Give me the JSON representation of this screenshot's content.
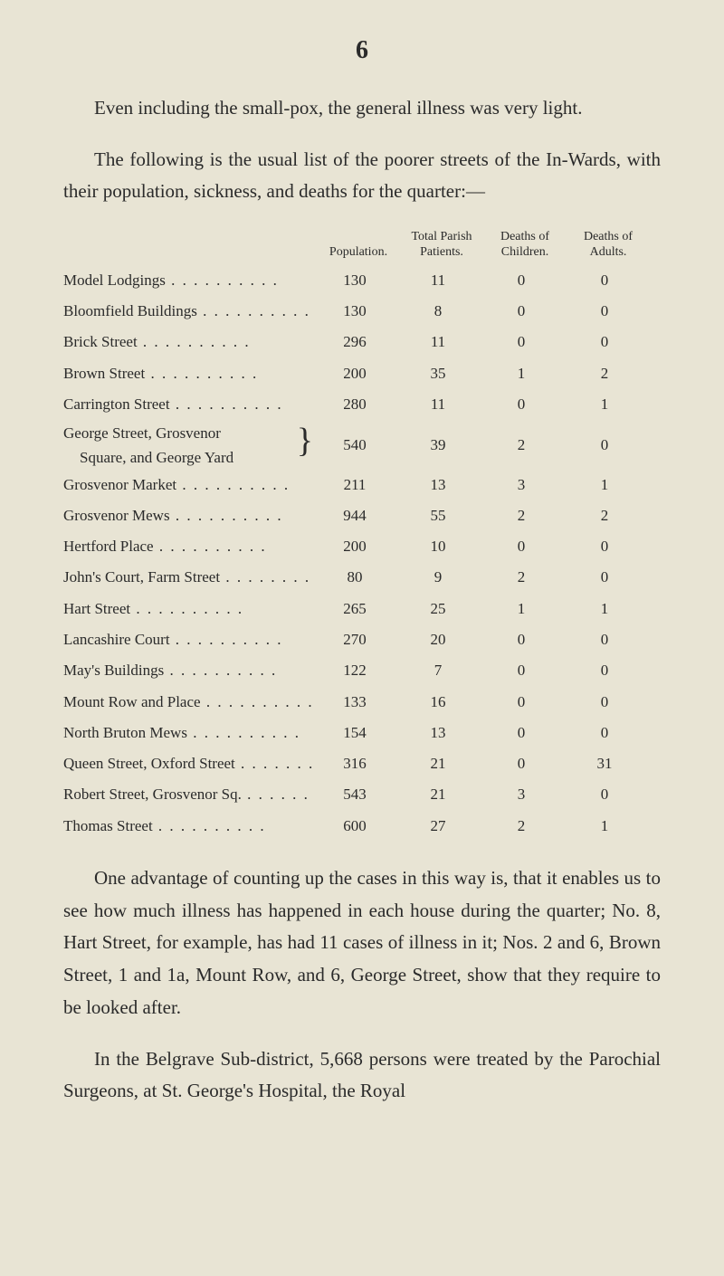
{
  "page_number": "6",
  "paragraphs": {
    "p1": "Even including the small-pox, the general illness was very light.",
    "p2": "The following is the usual list of the poorer streets of the In-Wards, with their population, sickness, and deaths for the quarter:—",
    "p3": "One advantage of counting up the cases in this way is, that it enables us to see how much illness has happened in each house during the quarter; No. 8, Hart Street, for example, has had 11 cases of illness in it; Nos. 2 and 6, Brown Street, 1 and 1a, Mount Row, and 6, George Street, show that they require to be looked after.",
    "p4": "In the Belgrave Sub-district, 5,668 persons were treated by the Parochial Surgeons, at St. George's Hospital, the Royal"
  },
  "table": {
    "headers": {
      "col1": "Population.",
      "col2": "Total Parish Patients.",
      "col3": "Deaths of Children.",
      "col4": "Deaths of Adults."
    },
    "rows": [
      {
        "label": "Model Lodgings",
        "population": "130",
        "patients": "11",
        "children": "0",
        "adults": "0"
      },
      {
        "label": "Bloomfield Buildings",
        "population": "130",
        "patients": "8",
        "children": "0",
        "adults": "0"
      },
      {
        "label": "Brick Street",
        "population": "296",
        "patients": "11",
        "children": "0",
        "adults": "0"
      },
      {
        "label": "Brown Street",
        "population": "200",
        "patients": "35",
        "children": "1",
        "adults": "2"
      },
      {
        "label": "Carrington Street",
        "population": "280",
        "patients": "11",
        "children": "0",
        "adults": "1"
      }
    ],
    "grouped_row": {
      "label1": "George Street, Grosvenor",
      "label2": "Square, and George Yard",
      "population": "540",
      "patients": "39",
      "children": "2",
      "adults": "0"
    },
    "rows2": [
      {
        "label": "Grosvenor Market",
        "population": "211",
        "patients": "13",
        "children": "3",
        "adults": "1"
      },
      {
        "label": "Grosvenor Mews",
        "population": "944",
        "patients": "55",
        "children": "2",
        "adults": "2"
      },
      {
        "label": "Hertford Place",
        "population": "200",
        "patients": "10",
        "children": "0",
        "adults": "0"
      },
      {
        "label": "John's Court, Farm Street",
        "population": "80",
        "patients": "9",
        "children": "2",
        "adults": "0"
      },
      {
        "label": "Hart Street",
        "population": "265",
        "patients": "25",
        "children": "1",
        "adults": "1"
      },
      {
        "label": "Lancashire Court",
        "population": "270",
        "patients": "20",
        "children": "0",
        "adults": "0"
      },
      {
        "label": "May's Buildings",
        "population": "122",
        "patients": "7",
        "children": "0",
        "adults": "0"
      },
      {
        "label": "Mount Row and Place",
        "population": "133",
        "patients": "16",
        "children": "0",
        "adults": "0"
      },
      {
        "label": "North Bruton Mews",
        "population": "154",
        "patients": "13",
        "children": "0",
        "adults": "0"
      },
      {
        "label": "Queen Street, Oxford Street",
        "population": "316",
        "patients": "21",
        "children": "0",
        "adults": "31"
      },
      {
        "label": "Robert Street, Grosvenor Sq.",
        "population": "543",
        "patients": "21",
        "children": "3",
        "adults": "0"
      },
      {
        "label": "Thomas Street",
        "population": "600",
        "patients": "27",
        "children": "2",
        "adults": "1"
      }
    ]
  },
  "colors": {
    "background": "#e8e4d4",
    "text": "#2a2a2a"
  },
  "typography": {
    "body_fontsize": 21,
    "table_fontsize": 17,
    "header_fontsize": 14
  }
}
